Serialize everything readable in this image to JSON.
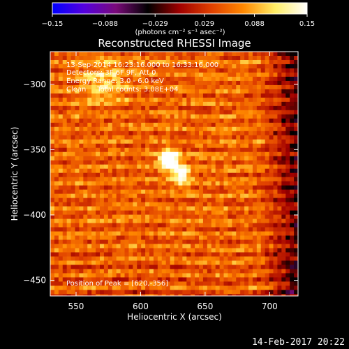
{
  "chart_data": {
    "type": "heatmap",
    "title": "Reconstructed RHESSI Image",
    "xlabel": "Heliocentric X (arcsec)",
    "ylabel": "Heliocentric Y (arcsec)",
    "xlim": [
      530,
      722
    ],
    "ylim": [
      -462,
      -275
    ],
    "x_ticks": [
      550,
      600,
      650,
      700
    ],
    "y_ticks": [
      -300,
      -350,
      -400,
      -450
    ],
    "x_tick_labels": [
      "550",
      "600",
      "650",
      "700"
    ],
    "y_tick_labels": [
      "−300",
      "−350",
      "−400",
      "−450"
    ],
    "colorbar": {
      "range": [
        -0.15,
        0.15
      ],
      "tick_values": [
        -0.15,
        -0.088,
        -0.029,
        0.029,
        0.088,
        0.15
      ],
      "tick_labels": [
        "−0.15",
        "−0.088",
        "−0.029",
        "0.029",
        "0.088",
        "0.15"
      ],
      "unit_label": "(photons cm⁻² s⁻¹ asec⁻²)",
      "colors": [
        "#0000ff",
        "#5500dd",
        "#7a0a7a",
        "#000000",
        "#a00000",
        "#e04000",
        "#ff8800",
        "#ffee66",
        "#ffffff"
      ]
    },
    "peak": {
      "x": 620,
      "y": -356
    },
    "annotations": [
      "13-Sep-2014 16:23:16.000 to 16:33:16.000",
      "Detectors: 3F 6F 9F, Att 0",
      "Energy Range: 3.0 - 6.0 keV",
      "Clean     Total counts: 3.08E+04"
    ],
    "peak_label": "Position of Peak = [620,-356]"
  },
  "timestamp": "14-Feb-2017 20:22"
}
